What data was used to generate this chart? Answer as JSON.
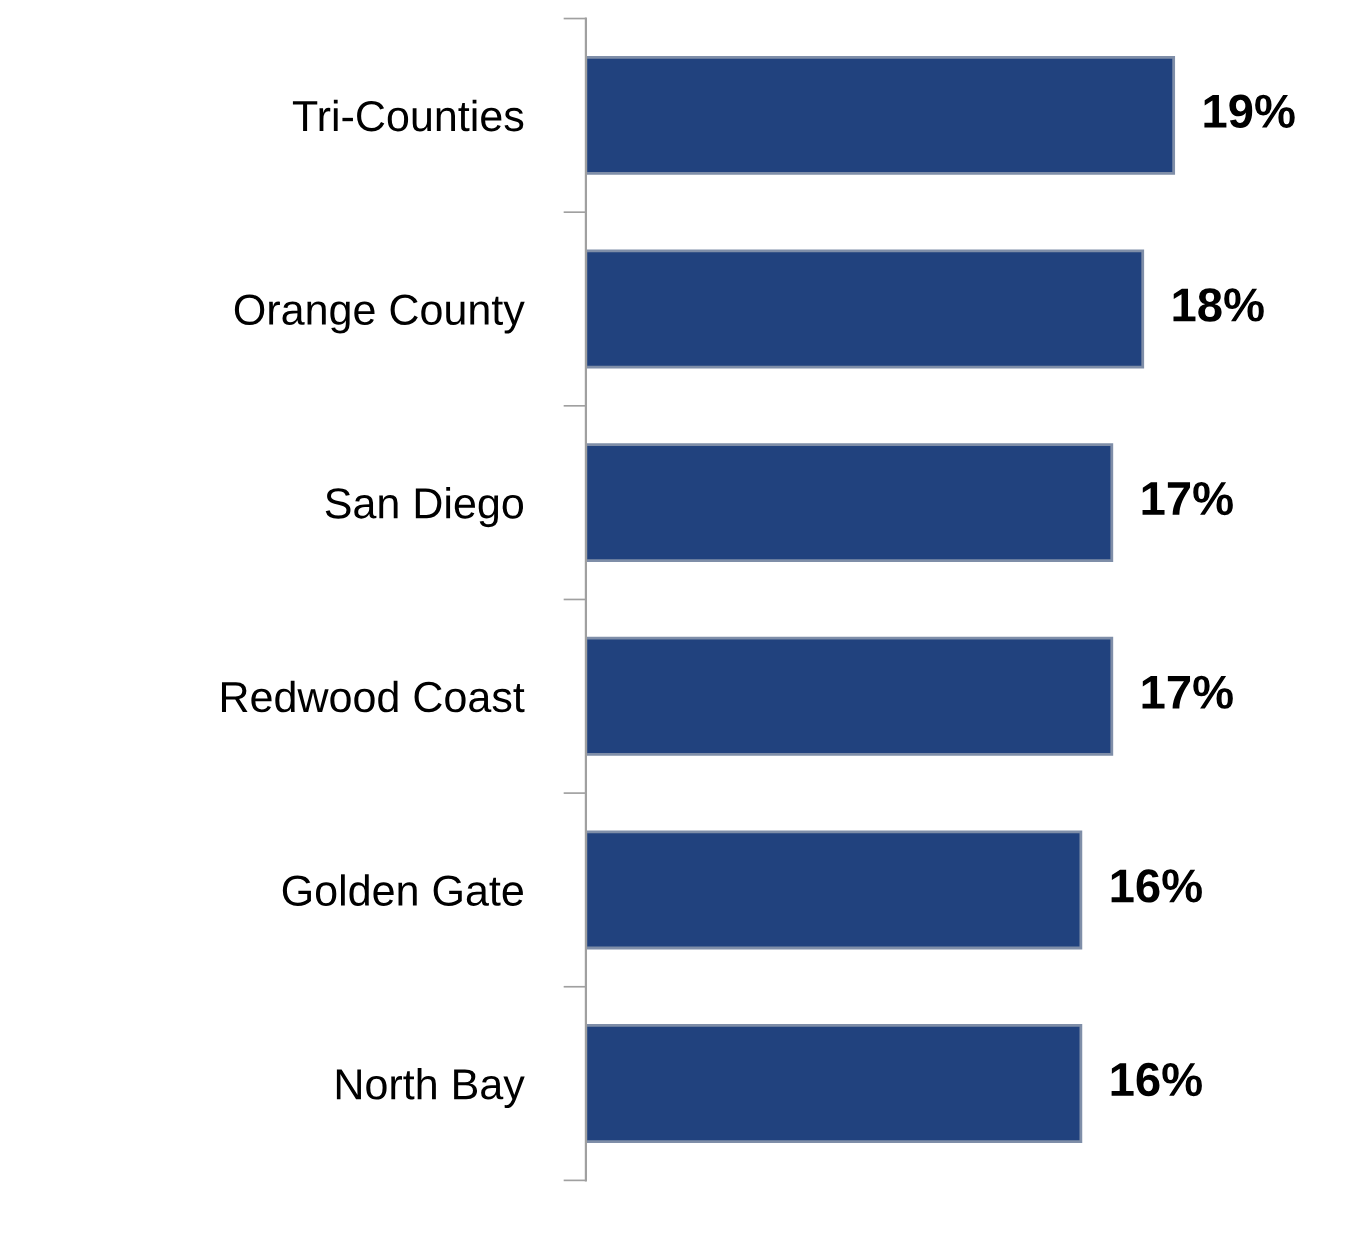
{
  "chart_data": {
    "type": "bar",
    "orientation": "horizontal",
    "categories": [
      "Tri-Counties",
      "Orange County",
      "San Diego",
      "Redwood Coast",
      "Golden Gate",
      "North Bay"
    ],
    "values": [
      19,
      18,
      17,
      17,
      16,
      16
    ],
    "value_labels": [
      "19%",
      "18%",
      "17%",
      "17%",
      "16%",
      "16%"
    ],
    "color": "#21427e",
    "tick_labels": "y",
    "grid": false,
    "legend": false
  }
}
